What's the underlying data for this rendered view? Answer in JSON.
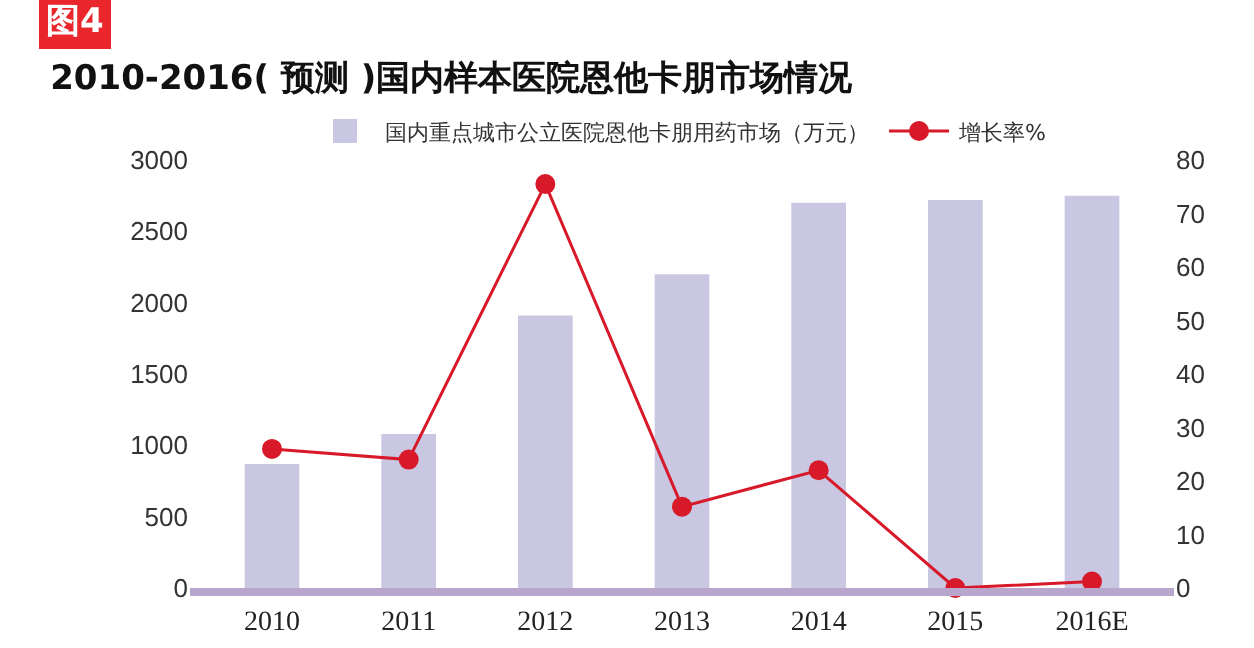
{
  "chart_data": {
    "type": "bar",
    "title": "2010-2016( 预测 )国内样本医院恩他卡朋市场情况",
    "annotations": [
      "图4"
    ],
    "categories": [
      "2010",
      "2011",
      "2012",
      "2013",
      "2014",
      "2015",
      "2016E"
    ],
    "series": [
      {
        "name": "国内重点城市公立医院恩他卡朋用药市场（万元）",
        "color": "#c9c7e2",
        "values": [
          870,
          1080,
          1910,
          2200,
          2700,
          2720,
          2750
        ]
      },
      {
        "name": "增长率%",
        "type": "line",
        "axis": "y2",
        "color": "#d7192a",
        "values": [
          26,
          24,
          75.5,
          15.2,
          22,
          0,
          1.2
        ]
      }
    ],
    "ylim": [
      0,
      3000
    ],
    "yticks": [
      0,
      500,
      1000,
      1500,
      2000,
      2500,
      3000
    ],
    "y2lim": [
      0,
      80
    ],
    "y2ticks": [
      0,
      10,
      20,
      30,
      40,
      50,
      60,
      70,
      80
    ],
    "marker": "circle",
    "grid": false,
    "legend": "top"
  }
}
